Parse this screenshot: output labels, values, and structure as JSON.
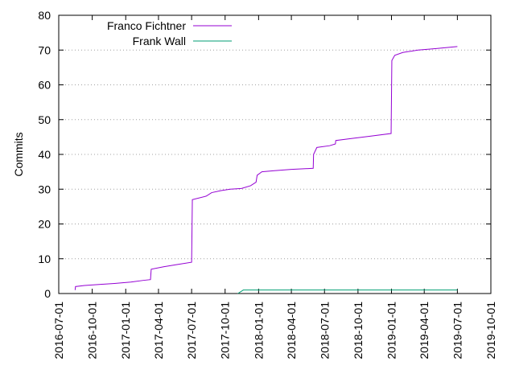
{
  "chart_data": {
    "type": "line",
    "title": "",
    "xlabel": "",
    "ylabel": "Commits",
    "ylim": [
      0,
      80
    ],
    "yticks": [
      0,
      10,
      20,
      30,
      40,
      50,
      60,
      70,
      80
    ],
    "xlim": [
      "2016-07-01",
      "2019-10-01"
    ],
    "xticks": [
      "2016-07-01",
      "2016-10-01",
      "2017-01-01",
      "2017-04-01",
      "2017-07-01",
      "2017-10-01",
      "2018-01-01",
      "2018-04-01",
      "2018-07-01",
      "2018-10-01",
      "2019-01-01",
      "2019-04-01",
      "2019-07-01",
      "2019-10-01"
    ],
    "grid": "horizontal",
    "legend": "top-left",
    "series": [
      {
        "name": "Franco Fichtner",
        "color": "#9400d3",
        "points": [
          [
            "2016-08-15",
            1
          ],
          [
            "2016-08-16",
            2
          ],
          [
            "2016-09-10",
            2.3
          ],
          [
            "2016-10-20",
            2.6
          ],
          [
            "2016-12-01",
            2.9
          ],
          [
            "2017-01-15",
            3.3
          ],
          [
            "2017-02-20",
            3.8
          ],
          [
            "2017-03-10",
            4
          ],
          [
            "2017-03-12",
            7
          ],
          [
            "2017-04-15",
            7.7
          ],
          [
            "2017-05-20",
            8.3
          ],
          [
            "2017-07-01",
            9
          ],
          [
            "2017-07-03",
            27
          ],
          [
            "2017-08-10",
            28
          ],
          [
            "2017-08-25",
            29
          ],
          [
            "2017-09-20",
            29.6
          ],
          [
            "2017-10-15",
            30
          ],
          [
            "2017-11-15",
            30.2
          ],
          [
            "2017-12-10",
            31
          ],
          [
            "2017-12-25",
            32
          ],
          [
            "2017-12-28",
            34
          ],
          [
            "2018-01-10",
            35
          ],
          [
            "2018-02-10",
            35.3
          ],
          [
            "2018-04-01",
            35.7
          ],
          [
            "2018-05-31",
            36
          ],
          [
            "2018-06-01",
            40
          ],
          [
            "2018-06-10",
            42
          ],
          [
            "2018-07-15",
            42.5
          ],
          [
            "2018-07-31",
            43
          ],
          [
            "2018-08-01",
            44
          ],
          [
            "2018-09-15",
            44.6
          ],
          [
            "2018-11-01",
            45.2
          ],
          [
            "2018-12-31",
            46
          ],
          [
            "2019-01-02",
            67
          ],
          [
            "2019-01-10",
            68.5
          ],
          [
            "2019-02-01",
            69.3
          ],
          [
            "2019-03-15",
            70
          ],
          [
            "2019-05-01",
            70.4
          ],
          [
            "2019-07-01",
            71
          ]
        ]
      },
      {
        "name": "Frank Wall",
        "color": "#009e73",
        "points": [
          [
            "2017-11-05",
            0
          ],
          [
            "2017-11-20",
            1
          ],
          [
            "2019-07-01",
            1
          ]
        ]
      }
    ]
  }
}
